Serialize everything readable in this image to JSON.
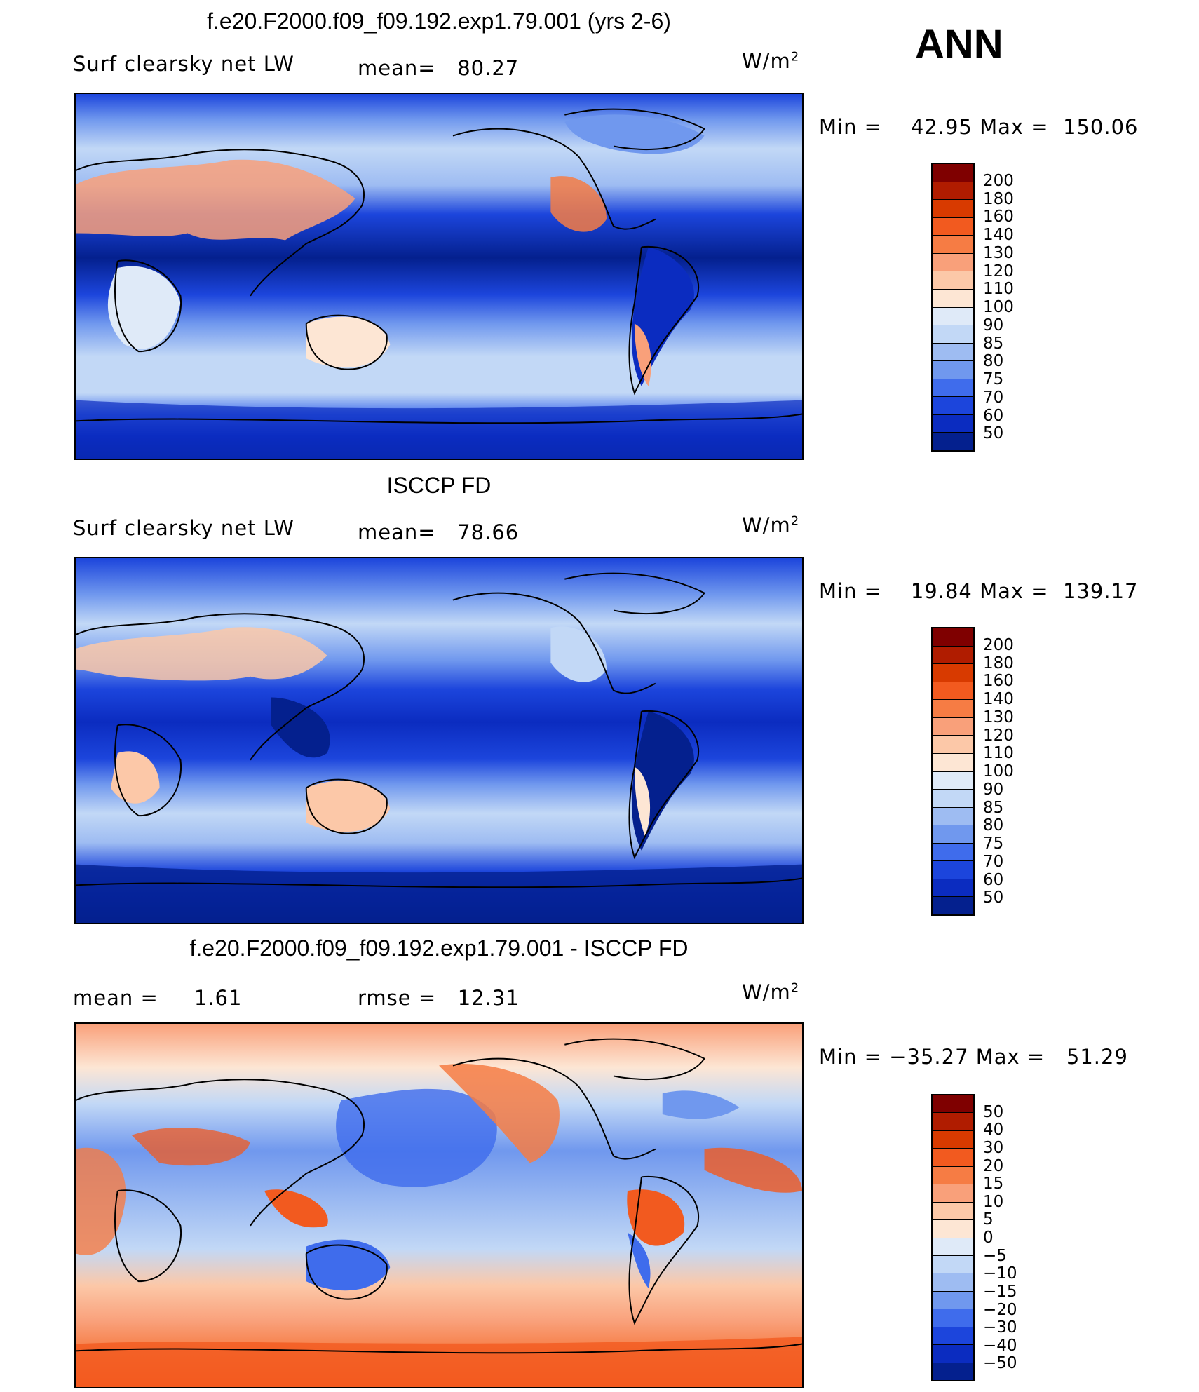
{
  "season": "ANN",
  "panels": [
    {
      "title": "f.e20.F2000.f09_f09.192.exp1.79.001 (yrs 2-6)",
      "left_label": "Surf  clearsky  net  LW",
      "stat_label": "mean=",
      "stat_value": "80.27",
      "unit": "W/m",
      "unit_exp": "2",
      "min_label": "Min  =",
      "min_value": "42.95",
      "max_label": "Max  =",
      "max_value": "150.06",
      "colorbar_levels": [
        "200",
        "180",
        "160",
        "140",
        "130",
        "120",
        "110",
        "100",
        "90",
        "85",
        "80",
        "75",
        "70",
        "60",
        "50"
      ],
      "map_kind": "model"
    },
    {
      "title": "ISCCP FD",
      "left_label": "Surf  clearsky  net  LW",
      "stat_label": "mean=",
      "stat_value": "78.66",
      "unit": "W/m",
      "unit_exp": "2",
      "min_label": "Min  =",
      "min_value": "19.84",
      "max_label": "Max  =",
      "max_value": "139.17",
      "colorbar_levels": [
        "200",
        "180",
        "160",
        "140",
        "130",
        "120",
        "110",
        "100",
        "90",
        "85",
        "80",
        "75",
        "70",
        "60",
        "50"
      ],
      "map_kind": "obs"
    },
    {
      "title": "f.e20.F2000.f09_f09.192.exp1.79.001 - ISCCP FD",
      "left_label": "mean  =",
      "left_value": "1.61",
      "stat_label": "rmse  =",
      "stat_value": "12.31",
      "unit": "W/m",
      "unit_exp": "2",
      "min_label": "Min  =",
      "min_value": "−35.27",
      "max_label": "Max  =",
      "max_value": "51.29",
      "colorbar_levels": [
        "50",
        "40",
        "30",
        "20",
        "15",
        "10",
        "5",
        "0",
        "−5",
        "−10",
        "−15",
        "−20",
        "−30",
        "−40",
        "−50"
      ],
      "map_kind": "diff"
    }
  ],
  "colors": {
    "scale": [
      "#7f0000",
      "#b01c00",
      "#d83a00",
      "#f25a1f",
      "#f67c44",
      "#f9a07a",
      "#fcc8a8",
      "#fde6d4",
      "#dfeaf8",
      "#c2d8f6",
      "#9ebcf2",
      "#7098ee",
      "#3f6cec",
      "#1c45dc",
      "#0b2cc0",
      "#04208e"
    ]
  }
}
